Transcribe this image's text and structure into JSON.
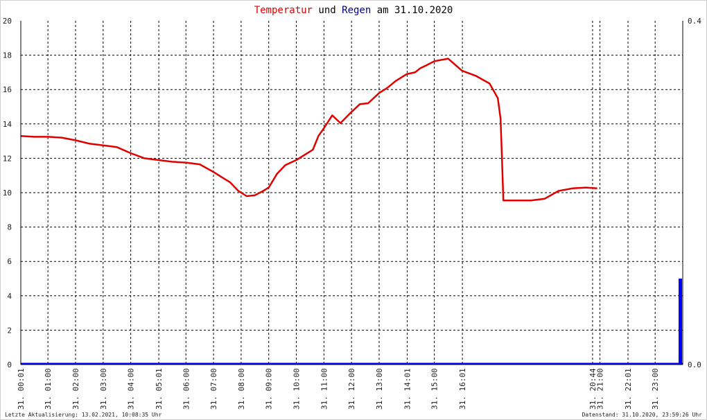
{
  "title": {
    "part1": "Temperatur",
    "part2": " und ",
    "part3": "Regen",
    "part4": " am 31.10.2020",
    "color1": "#e00000",
    "color3": "#000080"
  },
  "footer": {
    "left": "Letzte Aktualisierung: 13.02.2021, 10:08:35 Uhr",
    "right": "Datenstand: 31.10.2020, 23:59:26 Uhr"
  },
  "colors": {
    "temperature": "#e00000",
    "rain": "#0000ff",
    "grid": "#000000",
    "axis": "#000000"
  },
  "chart_data": {
    "type": "line",
    "title": "Temperatur und Regen am 31.10.2020",
    "xlabel": "",
    "ylabel": "",
    "ylim": [
      0,
      20
    ],
    "y2lim": [
      0,
      0.4
    ],
    "grid": true,
    "yticks": [
      "0",
      "2",
      "4",
      "6",
      "8",
      "10",
      "12",
      "14",
      "16",
      "18",
      "20"
    ],
    "y2ticks": [
      "0.0",
      "0.4"
    ],
    "x_range_hours": [
      0.0167,
      24.0
    ],
    "xticks": [
      {
        "h": 0.0167,
        "label": "31. 00:01"
      },
      {
        "h": 1.0,
        "label": "31. 01:00"
      },
      {
        "h": 2.0,
        "label": "31. 02:00"
      },
      {
        "h": 3.0,
        "label": "31. 03:00"
      },
      {
        "h": 4.0,
        "label": "31. 04:00"
      },
      {
        "h": 5.0167,
        "label": "31. 05:01"
      },
      {
        "h": 6.0,
        "label": "31. 06:00"
      },
      {
        "h": 7.0,
        "label": "31. 07:00"
      },
      {
        "h": 8.0,
        "label": "31. 08:00"
      },
      {
        "h": 9.0,
        "label": "31. 09:00"
      },
      {
        "h": 10.0,
        "label": "31. 10:00"
      },
      {
        "h": 11.0,
        "label": "31. 11:00"
      },
      {
        "h": 12.0,
        "label": "31. 12:00"
      },
      {
        "h": 13.0,
        "label": "31. 13:00"
      },
      {
        "h": 14.0167,
        "label": "31. 14:01"
      },
      {
        "h": 15.0,
        "label": "31. 15:00"
      },
      {
        "h": 16.0167,
        "label": "31. 16:01"
      },
      {
        "h": 20.7333,
        "label": "31. 20:44"
      },
      {
        "h": 21.0,
        "label": "31. 21:00"
      },
      {
        "h": 22.0167,
        "label": "31. 22:01"
      },
      {
        "h": 23.0,
        "label": "31. 23:00"
      }
    ],
    "series": [
      {
        "name": "Temperatur",
        "x": [
          0.0167,
          0.5,
          1.0,
          1.5,
          2.0,
          2.5,
          3.0,
          3.5,
          4.0,
          4.5,
          5.0,
          5.5,
          6.0,
          6.5,
          7.0,
          7.3,
          7.6,
          7.9,
          8.2,
          8.5,
          8.8,
          9.0,
          9.3,
          9.6,
          10.0,
          10.3,
          10.6,
          10.8,
          11.0,
          11.3,
          11.6,
          12.0,
          12.3,
          12.6,
          13.0,
          13.3,
          13.6,
          14.0,
          14.3,
          14.5,
          14.7,
          15.0,
          15.5,
          16.0,
          16.5,
          17.0,
          17.3,
          17.4,
          17.45,
          17.5,
          18.0,
          18.5,
          19.0,
          19.5,
          20.0,
          20.5,
          20.9
        ],
        "y": [
          13.3,
          13.25,
          13.25,
          13.2,
          13.05,
          12.85,
          12.75,
          12.65,
          12.3,
          12.0,
          11.9,
          11.8,
          11.75,
          11.65,
          11.2,
          10.9,
          10.6,
          10.1,
          9.8,
          9.85,
          10.1,
          10.3,
          11.1,
          11.6,
          11.9,
          12.2,
          12.5,
          13.3,
          13.75,
          14.5,
          14.05,
          14.7,
          15.15,
          15.2,
          15.8,
          16.1,
          16.5,
          16.9,
          17.0,
          17.25,
          17.4,
          17.65,
          17.8,
          17.1,
          16.8,
          16.35,
          15.5,
          14.3,
          12.0,
          9.55,
          9.55,
          9.55,
          9.65,
          10.1,
          10.25,
          10.3,
          10.25
        ]
      },
      {
        "name": "Regen",
        "bars": [
          {
            "x": 23.9,
            "value": 0.1
          },
          {
            "x": 23.95,
            "value": 0.1
          }
        ]
      }
    ]
  }
}
